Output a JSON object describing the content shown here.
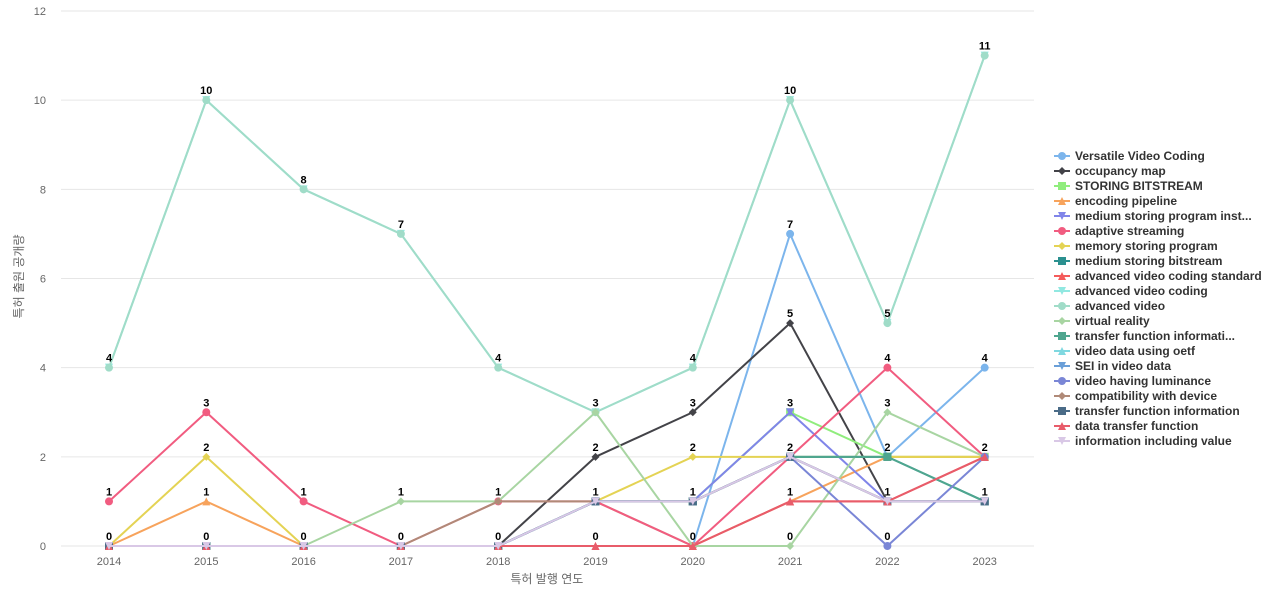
{
  "chart_data": {
    "type": "line",
    "title": "",
    "xlabel": "특허 발행 연도",
    "ylabel": "특허 출원 공개량",
    "x": [
      "2014",
      "2015",
      "2016",
      "2017",
      "2018",
      "2019",
      "2020",
      "2021",
      "2022",
      "2023"
    ],
    "ylim": [
      0,
      12
    ],
    "yticks": [
      0,
      2,
      4,
      6,
      8,
      10,
      12
    ],
    "grid": true,
    "legend_position": "right",
    "series": [
      {
        "name": "Versatile Video Coding",
        "color": "#7cb5ec",
        "marker": "circle",
        "values": [
          0,
          0,
          0,
          0,
          0,
          1,
          0,
          7,
          2,
          4
        ]
      },
      {
        "name": "occupancy map",
        "color": "#434348",
        "marker": "diamond",
        "values": [
          0,
          0,
          0,
          0,
          0,
          2,
          3,
          5,
          1,
          1
        ]
      },
      {
        "name": "STORING BITSTREAM",
        "color": "#90ed7d",
        "marker": "square",
        "values": [
          0,
          0,
          0,
          0,
          0,
          1,
          1,
          3,
          2,
          2
        ]
      },
      {
        "name": "encoding pipeline",
        "color": "#f7a35c",
        "marker": "triangle",
        "values": [
          0,
          1,
          0,
          0,
          0,
          1,
          0,
          1,
          2,
          2
        ]
      },
      {
        "name": "medium storing program inst...",
        "color": "#8085e9",
        "marker": "triangle-down",
        "values": [
          0,
          0,
          0,
          0,
          0,
          1,
          1,
          3,
          1,
          1
        ]
      },
      {
        "name": "adaptive streaming",
        "color": "#f15c80",
        "marker": "circle",
        "values": [
          1,
          3,
          1,
          0,
          1,
          1,
          0,
          2,
          4,
          2
        ]
      },
      {
        "name": "memory storing program",
        "color": "#e4d354",
        "marker": "diamond",
        "values": [
          0,
          2,
          0,
          0,
          0,
          1,
          2,
          2,
          2,
          2
        ]
      },
      {
        "name": "medium storing bitstream",
        "color": "#2b908f",
        "marker": "square",
        "values": [
          0,
          0,
          0,
          0,
          0,
          1,
          1,
          2,
          2,
          1
        ]
      },
      {
        "name": "advanced video coding standard",
        "color": "#f45b5b",
        "marker": "triangle",
        "values": [
          0,
          0,
          0,
          0,
          0,
          0,
          0,
          1,
          1,
          2
        ]
      },
      {
        "name": "advanced video coding",
        "color": "#91e8e1",
        "marker": "triangle-down",
        "values": [
          4,
          10,
          8,
          7,
          4,
          3,
          4,
          10,
          5,
          11
        ]
      },
      {
        "name": "advanced video",
        "color": "#a0dcc8",
        "marker": "circle",
        "values": [
          4,
          10,
          8,
          7,
          4,
          3,
          4,
          10,
          5,
          11
        ]
      },
      {
        "name": "virtual reality",
        "color": "#a8d5a2",
        "marker": "diamond",
        "values": [
          0,
          0,
          0,
          1,
          1,
          3,
          0,
          0,
          3,
          2
        ]
      },
      {
        "name": "transfer function informati...",
        "color": "#4fa68f",
        "marker": "square",
        "values": [
          0,
          0,
          0,
          0,
          0,
          1,
          1,
          2,
          2,
          1
        ]
      },
      {
        "name": "video data using oetf",
        "color": "#7fd8e0",
        "marker": "triangle",
        "values": [
          0,
          0,
          0,
          0,
          0,
          1,
          1,
          2,
          1,
          1
        ]
      },
      {
        "name": "SEI in video data",
        "color": "#6a9fd8",
        "marker": "triangle-down",
        "values": [
          0,
          0,
          0,
          0,
          0,
          1,
          1,
          2,
          1,
          1
        ]
      },
      {
        "name": "video having luminance",
        "color": "#7a86d6",
        "marker": "circle",
        "values": [
          0,
          0,
          0,
          0,
          0,
          1,
          1,
          2,
          0,
          2
        ]
      },
      {
        "name": "compatibility with device",
        "color": "#b08a78",
        "marker": "diamond",
        "values": [
          0,
          0,
          0,
          0,
          1,
          1,
          1,
          2,
          1,
          1
        ]
      },
      {
        "name": "transfer function information",
        "color": "#4a6b87",
        "marker": "square",
        "values": [
          0,
          0,
          0,
          0,
          0,
          1,
          1,
          2,
          1,
          1
        ]
      },
      {
        "name": "data transfer function",
        "color": "#e85c6a",
        "marker": "triangle",
        "values": [
          0,
          0,
          0,
          0,
          0,
          0,
          0,
          1,
          1,
          2
        ]
      },
      {
        "name": "information including value",
        "color": "#d9c8e6",
        "marker": "triangle-down",
        "values": [
          0,
          0,
          0,
          0,
          0,
          1,
          1,
          2,
          1,
          1
        ]
      }
    ],
    "data_labels": [
      {
        "x": "2014",
        "text": "4",
        "y": 4
      },
      {
        "x": "2015",
        "text": "10",
        "y": 10
      },
      {
        "x": "2016",
        "text": "8",
        "y": 8
      },
      {
        "x": "2017",
        "text": "7",
        "y": 7
      },
      {
        "x": "2018",
        "text": "4",
        "y": 4
      },
      {
        "x": "2019",
        "text": "3",
        "y": 3
      },
      {
        "x": "2020",
        "text": "4",
        "y": 4
      },
      {
        "x": "2021",
        "text": "10",
        "y": 10
      },
      {
        "x": "2022",
        "text": "5",
        "y": 5
      },
      {
        "x": "2023",
        "text": "11",
        "y": 11
      },
      {
        "x": "2021",
        "text": "7",
        "y": 7
      },
      {
        "x": "2021",
        "text": "5",
        "y": 5
      },
      {
        "x": "2015",
        "text": "3",
        "y": 3
      },
      {
        "x": "2019",
        "text": "2",
        "y": 2
      },
      {
        "x": "2020",
        "text": "3",
        "y": 3
      },
      {
        "x": "2021",
        "text": "3",
        "y": 3
      },
      {
        "x": "2022",
        "text": "4",
        "y": 4
      },
      {
        "x": "2022",
        "text": "3",
        "y": 3
      },
      {
        "x": "2023",
        "text": "4",
        "y": 4
      },
      {
        "x": "2015",
        "text": "2",
        "y": 2
      },
      {
        "x": "2020",
        "text": "2",
        "y": 2
      },
      {
        "x": "2021",
        "text": "2",
        "y": 2
      },
      {
        "x": "2022",
        "text": "2",
        "y": 2
      },
      {
        "x": "2023",
        "text": "2",
        "y": 2
      },
      {
        "x": "2014",
        "text": "1",
        "y": 1
      },
      {
        "x": "2015",
        "text": "1",
        "y": 1
      },
      {
        "x": "2016",
        "text": "1",
        "y": 1
      },
      {
        "x": "2017",
        "text": "1",
        "y": 1
      },
      {
        "x": "2018",
        "text": "1",
        "y": 1
      },
      {
        "x": "2019",
        "text": "1",
        "y": 1
      },
      {
        "x": "2020",
        "text": "1",
        "y": 1
      },
      {
        "x": "2021",
        "text": "1",
        "y": 1
      },
      {
        "x": "2022",
        "text": "1",
        "y": 1
      },
      {
        "x": "2023",
        "text": "1",
        "y": 1
      },
      {
        "x": "2014",
        "text": "0",
        "y": 0
      },
      {
        "x": "2015",
        "text": "0",
        "y": 0
      },
      {
        "x": "2016",
        "text": "0",
        "y": 0
      },
      {
        "x": "2017",
        "text": "0",
        "y": 0
      },
      {
        "x": "2018",
        "text": "0",
        "y": 0
      },
      {
        "x": "2019",
        "text": "0",
        "y": 0
      },
      {
        "x": "2020",
        "text": "0",
        "y": 0
      },
      {
        "x": "2021",
        "text": "0",
        "y": 0
      },
      {
        "x": "2022",
        "text": "0",
        "y": 0
      }
    ]
  }
}
